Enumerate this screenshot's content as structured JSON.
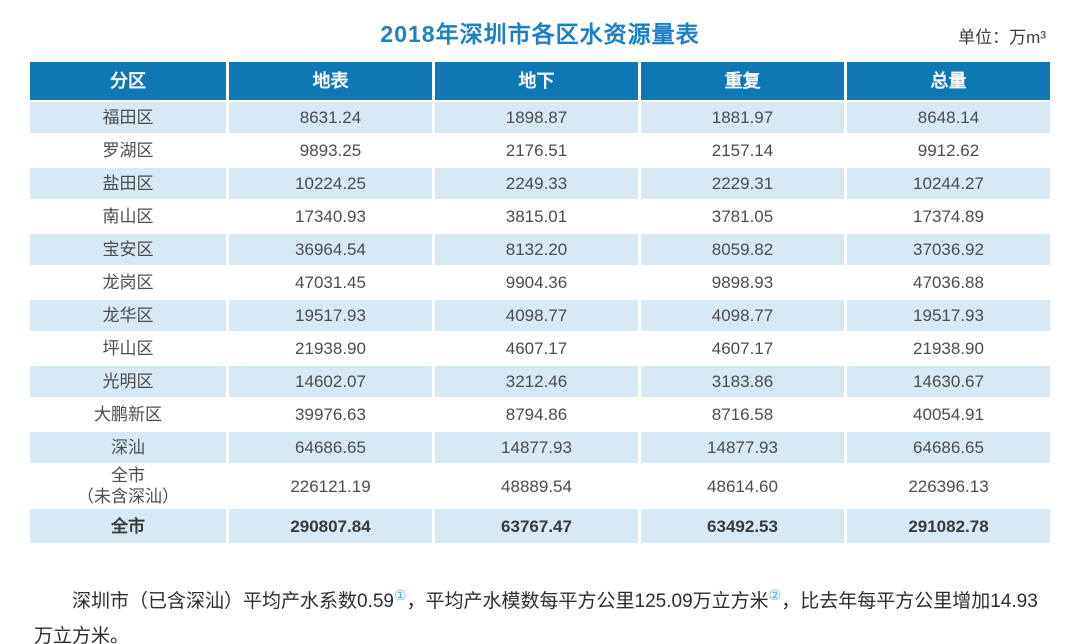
{
  "colors": {
    "title_blue": "#1b80c4",
    "header_bg": "#0f77b4",
    "row_shaded": "#d7e9f5",
    "ref_blue": "#48a9dc"
  },
  "header": {
    "unit_label": "单位：万m³"
  },
  "chart_data": {
    "type": "table",
    "title": "2018年深圳市各区水资源量表",
    "unit": "单位：万m³",
    "columns": [
      "分区",
      "地表",
      "地下",
      "重复",
      "总量"
    ],
    "rows": [
      {
        "cells": [
          "福田区",
          "8631.24",
          "1898.87",
          "1881.97",
          "8648.14"
        ]
      },
      {
        "cells": [
          "罗湖区",
          "9893.25",
          "2176.51",
          "2157.14",
          "9912.62"
        ]
      },
      {
        "cells": [
          "盐田区",
          "10224.25",
          "2249.33",
          "2229.31",
          "10244.27"
        ]
      },
      {
        "cells": [
          "南山区",
          "17340.93",
          "3815.01",
          "3781.05",
          "17374.89"
        ]
      },
      {
        "cells": [
          "宝安区",
          "36964.54",
          "8132.20",
          "8059.82",
          "37036.92"
        ]
      },
      {
        "cells": [
          "龙岗区",
          "47031.45",
          "9904.36",
          "9898.93",
          "47036.88"
        ]
      },
      {
        "cells": [
          "龙华区",
          "19517.93",
          "4098.77",
          "4098.77",
          "19517.93"
        ]
      },
      {
        "cells": [
          "坪山区",
          "21938.90",
          "4607.17",
          "4607.17",
          "21938.90"
        ]
      },
      {
        "cells": [
          "光明区",
          "14602.07",
          "3212.46",
          "3183.86",
          "14630.67"
        ]
      },
      {
        "cells": [
          "大鹏新区",
          "39976.63",
          "8794.86",
          "8716.58",
          "40054.91"
        ]
      },
      {
        "cells": [
          "深汕",
          "64686.65",
          "14877.93",
          "14877.93",
          "64686.65"
        ]
      },
      {
        "cells": [
          "全市\n（未含深汕）",
          "226121.19",
          "48889.54",
          "48614.60",
          "226396.13"
        ]
      },
      {
        "cells": [
          "全市",
          "290807.84",
          "63767.47",
          "63492.53",
          "291082.78"
        ],
        "bold": true
      }
    ],
    "footnote": "深圳市（已含深汕）平均产水系数0.59①，平均产水模数每平方公里125.09万立方米②，比去年每平方公里增加14.93万立方米。"
  },
  "footnote": {
    "segments": [
      {
        "text": "深圳市（已含深汕）平均产水系数0.59"
      },
      {
        "text": "①"
      },
      {
        "text": "，平均产水模数每平方公里125.09万立方米"
      },
      {
        "text": "②"
      },
      {
        "text": "，比去年每平方公里增加14.93万立方米。"
      }
    ]
  }
}
